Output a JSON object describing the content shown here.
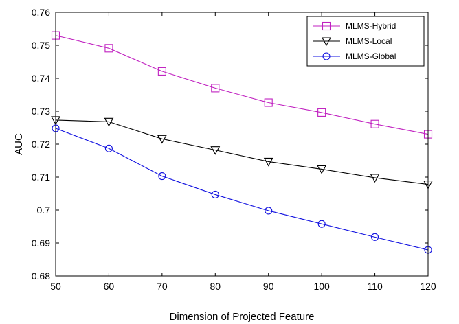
{
  "chart_data": {
    "type": "line",
    "xlabel": "Dimension of Projected Feature",
    "ylabel": "AUC",
    "xlim": [
      50,
      120
    ],
    "ylim": [
      0.68,
      0.76
    ],
    "x": [
      50,
      60,
      70,
      80,
      90,
      100,
      110,
      120
    ],
    "xticks": [
      "50",
      "60",
      "70",
      "80",
      "90",
      "100",
      "110",
      "120"
    ],
    "yticks": [
      "0.68",
      "0.69",
      "0.7",
      "0.71",
      "0.72",
      "0.73",
      "0.74",
      "0.75",
      "0.76"
    ],
    "grid": false,
    "legend_position": "top-right",
    "series": [
      {
        "name": "MLMS-Hybrid",
        "color": "#c020c0",
        "marker": "square",
        "values": [
          0.753,
          0.7491,
          0.7421,
          0.737,
          0.7326,
          0.7296,
          0.7261,
          0.723
        ]
      },
      {
        "name": "MLMS-Local",
        "color": "#000000",
        "marker": "triangle-down",
        "values": [
          0.7273,
          0.7268,
          0.7216,
          0.7182,
          0.7147,
          0.7124,
          0.7098,
          0.7078
        ]
      },
      {
        "name": "MLMS-Global",
        "color": "#1010e0",
        "marker": "circle",
        "values": [
          0.7248,
          0.7187,
          0.7103,
          0.7047,
          0.6998,
          0.6958,
          0.6918,
          0.6879
        ]
      }
    ]
  }
}
